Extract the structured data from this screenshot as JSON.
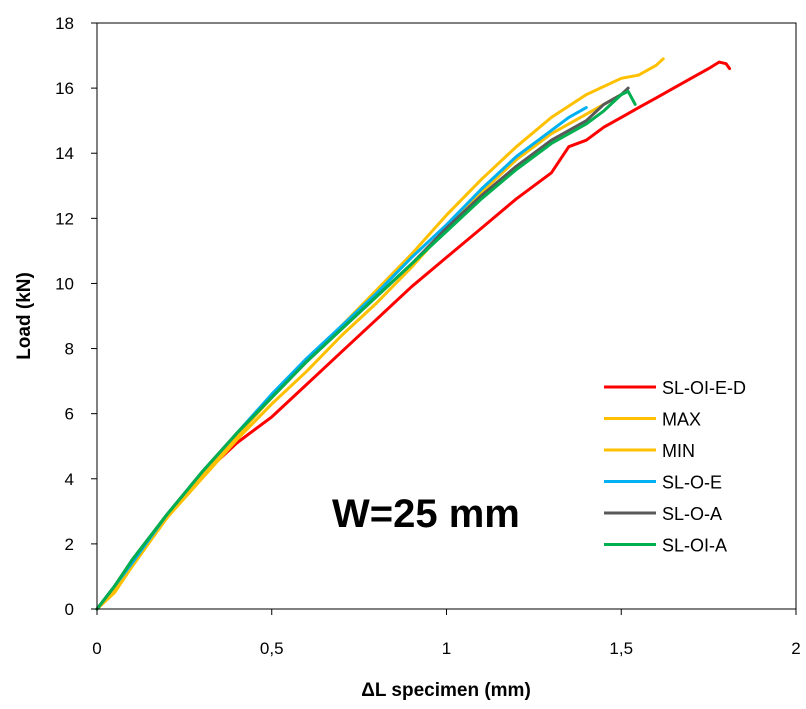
{
  "chart_data": {
    "type": "line",
    "xlabel": "ΔL specimen (mm)",
    "ylabel": "Load (kN)",
    "xlim": [
      0,
      2
    ],
    "ylim": [
      0,
      18
    ],
    "xticks": [
      0,
      0.5,
      1,
      1.5,
      2
    ],
    "xtick_labels": [
      "0",
      "0,5",
      "1",
      "1,5",
      "2"
    ],
    "yticks": [
      0,
      2,
      4,
      6,
      8,
      10,
      12,
      14,
      16,
      18
    ],
    "ytick_labels": [
      "0",
      "2",
      "4",
      "6",
      "8",
      "10",
      "12",
      "14",
      "16",
      "18"
    ],
    "grid": false,
    "legend_position": "right",
    "annotation": "W=25 mm",
    "series": [
      {
        "name": "SL-OI-E-D",
        "color": "#ff0000",
        "x": [
          0,
          0.05,
          0.1,
          0.2,
          0.3,
          0.4,
          0.5,
          0.6,
          0.7,
          0.8,
          0.9,
          1.0,
          1.1,
          1.2,
          1.3,
          1.35,
          1.4,
          1.45,
          1.5,
          1.55,
          1.6,
          1.65,
          1.7,
          1.75,
          1.78,
          1.8,
          1.81
        ],
        "y": [
          0,
          0.6,
          1.4,
          2.8,
          4.1,
          5.1,
          5.9,
          6.9,
          7.9,
          8.9,
          9.9,
          10.8,
          11.7,
          12.6,
          13.4,
          14.2,
          14.4,
          14.8,
          15.1,
          15.4,
          15.7,
          16.0,
          16.3,
          16.6,
          16.8,
          16.75,
          16.6
        ]
      },
      {
        "name": "MAX",
        "color": "#ffc000",
        "x": [
          0,
          0.05,
          0.1,
          0.2,
          0.3,
          0.4,
          0.5,
          0.6,
          0.7,
          0.8,
          0.9,
          1.0,
          1.1,
          1.2,
          1.3,
          1.4,
          1.5,
          1.55,
          1.6,
          1.62
        ],
        "y": [
          0,
          0.5,
          1.3,
          2.8,
          4.1,
          5.3,
          6.5,
          7.6,
          8.7,
          9.8,
          10.9,
          12.1,
          13.2,
          14.2,
          15.1,
          15.8,
          16.3,
          16.4,
          16.7,
          16.9
        ]
      },
      {
        "name": "MIN",
        "color": "#ffc000",
        "x": [
          0,
          0.05,
          0.1,
          0.2,
          0.3,
          0.4,
          0.5,
          0.6,
          0.7,
          0.8,
          0.9,
          1.0,
          1.1,
          1.2,
          1.3,
          1.4,
          1.45,
          1.5
        ],
        "y": [
          0,
          0.6,
          1.3,
          2.8,
          4.0,
          5.2,
          6.3,
          7.3,
          8.4,
          9.4,
          10.5,
          11.7,
          12.8,
          13.8,
          14.6,
          15.2,
          15.5,
          15.8
        ]
      },
      {
        "name": "SL-O-E",
        "color": "#00b0f0",
        "x": [
          0,
          0.05,
          0.1,
          0.2,
          0.3,
          0.4,
          0.5,
          0.6,
          0.7,
          0.8,
          0.9,
          1.0,
          1.1,
          1.2,
          1.3,
          1.35,
          1.4
        ],
        "y": [
          0,
          0.7,
          1.4,
          2.9,
          4.2,
          5.4,
          6.6,
          7.7,
          8.7,
          9.7,
          10.8,
          11.8,
          12.9,
          13.9,
          14.7,
          15.1,
          15.4
        ]
      },
      {
        "name": "SL-O-A",
        "color": "#595959",
        "x": [
          0,
          0.05,
          0.1,
          0.2,
          0.3,
          0.4,
          0.5,
          0.6,
          0.7,
          0.8,
          0.9,
          1.0,
          1.1,
          1.2,
          1.3,
          1.4,
          1.45,
          1.5,
          1.52
        ],
        "y": [
          0,
          0.7,
          1.5,
          2.9,
          4.2,
          5.4,
          6.5,
          7.6,
          8.6,
          9.6,
          10.6,
          11.7,
          12.7,
          13.6,
          14.4,
          15.0,
          15.5,
          15.8,
          16.0
        ]
      },
      {
        "name": "SL-OI-A",
        "color": "#00b050",
        "x": [
          0,
          0.05,
          0.1,
          0.2,
          0.3,
          0.4,
          0.5,
          0.6,
          0.7,
          0.8,
          0.9,
          1.0,
          1.1,
          1.2,
          1.3,
          1.4,
          1.45,
          1.5,
          1.52,
          1.54
        ],
        "y": [
          0,
          0.7,
          1.5,
          2.9,
          4.2,
          5.4,
          6.5,
          7.6,
          8.6,
          9.6,
          10.6,
          11.6,
          12.6,
          13.5,
          14.3,
          14.9,
          15.3,
          15.8,
          15.9,
          15.5
        ]
      }
    ]
  }
}
